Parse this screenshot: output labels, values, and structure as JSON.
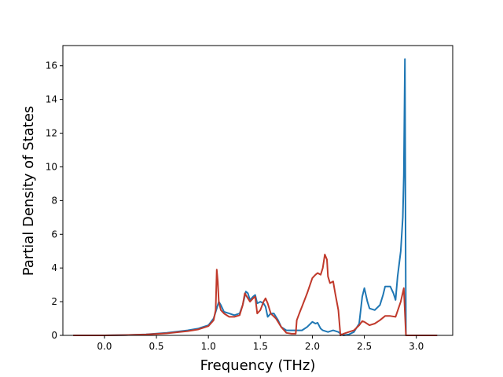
{
  "chart_data": {
    "type": "line",
    "title": "",
    "xlabel": "Frequency (THz)",
    "ylabel": "Partial Density of States",
    "xlim": [
      -0.4,
      3.35
    ],
    "ylim": [
      0,
      17.2
    ],
    "xticks": [
      "0.0",
      "0.5",
      "1.0",
      "1.5",
      "2.0",
      "2.5",
      "3.0"
    ],
    "xtick_values": [
      0.0,
      0.5,
      1.0,
      1.5,
      2.0,
      2.5,
      3.0
    ],
    "yticks": [
      "0",
      "2",
      "4",
      "6",
      "8",
      "10",
      "12",
      "14",
      "16"
    ],
    "ytick_values": [
      0,
      2,
      4,
      6,
      8,
      10,
      12,
      14,
      16
    ],
    "grid": false,
    "legend": "none",
    "series": [
      {
        "color": "#1f77b4",
        "x": [
          -0.3,
          0.0,
          0.2,
          0.4,
          0.6,
          0.8,
          0.9,
          1.0,
          1.05,
          1.08,
          1.1,
          1.12,
          1.15,
          1.2,
          1.25,
          1.3,
          1.33,
          1.36,
          1.38,
          1.4,
          1.43,
          1.45,
          1.47,
          1.5,
          1.53,
          1.55,
          1.57,
          1.6,
          1.63,
          1.67,
          1.7,
          1.75,
          1.8,
          1.85,
          1.9,
          1.95,
          2.0,
          2.03,
          2.05,
          2.08,
          2.1,
          2.15,
          2.2,
          2.25,
          2.28,
          2.3,
          2.35,
          2.4,
          2.45,
          2.48,
          2.5,
          2.53,
          2.55,
          2.6,
          2.65,
          2.68,
          2.7,
          2.75,
          2.78,
          2.8,
          2.82,
          2.85,
          2.87,
          2.88,
          2.89,
          2.9,
          2.91,
          2.95,
          3.0,
          3.2
        ],
        "y": [
          0.0,
          0.0,
          0.02,
          0.06,
          0.15,
          0.3,
          0.4,
          0.6,
          1.0,
          1.6,
          2.0,
          1.8,
          1.4,
          1.3,
          1.2,
          1.3,
          1.8,
          2.6,
          2.5,
          2.1,
          2.3,
          2.4,
          1.9,
          2.0,
          1.9,
          1.7,
          1.1,
          1.3,
          1.3,
          0.9,
          0.5,
          0.3,
          0.3,
          0.3,
          0.3,
          0.5,
          0.8,
          0.7,
          0.75,
          0.4,
          0.3,
          0.2,
          0.3,
          0.2,
          0.05,
          0.0,
          0.05,
          0.2,
          0.7,
          2.3,
          2.8,
          2.0,
          1.6,
          1.5,
          1.8,
          2.4,
          2.9,
          2.9,
          2.5,
          2.1,
          3.5,
          5.0,
          7.0,
          9.5,
          16.4,
          0.0,
          0.0,
          0.0,
          0.0,
          0.0
        ]
      },
      {
        "color": "#c0392b",
        "x": [
          -0.3,
          0.0,
          0.2,
          0.4,
          0.6,
          0.8,
          0.9,
          1.0,
          1.05,
          1.07,
          1.08,
          1.09,
          1.1,
          1.12,
          1.15,
          1.2,
          1.25,
          1.3,
          1.33,
          1.35,
          1.37,
          1.4,
          1.43,
          1.45,
          1.47,
          1.5,
          1.53,
          1.55,
          1.57,
          1.6,
          1.65,
          1.7,
          1.75,
          1.8,
          1.84,
          1.85,
          1.88,
          1.9,
          1.95,
          2.0,
          2.03,
          2.05,
          2.08,
          2.1,
          2.12,
          2.14,
          2.15,
          2.17,
          2.2,
          2.22,
          2.25,
          2.27,
          2.3,
          2.35,
          2.4,
          2.45,
          2.48,
          2.5,
          2.55,
          2.6,
          2.65,
          2.7,
          2.75,
          2.8,
          2.85,
          2.88,
          2.9,
          2.91,
          2.95,
          3.0,
          3.2
        ],
        "y": [
          0.0,
          0.0,
          0.02,
          0.05,
          0.12,
          0.25,
          0.35,
          0.55,
          0.9,
          1.5,
          3.9,
          3.2,
          2.0,
          1.5,
          1.3,
          1.1,
          1.1,
          1.2,
          1.8,
          2.5,
          2.3,
          2.0,
          2.2,
          2.3,
          1.3,
          1.5,
          2.0,
          2.2,
          1.9,
          1.3,
          1.0,
          0.5,
          0.15,
          0.1,
          0.1,
          0.9,
          1.4,
          1.7,
          2.5,
          3.4,
          3.6,
          3.7,
          3.6,
          4.0,
          4.8,
          4.5,
          3.5,
          3.1,
          3.2,
          2.5,
          1.5,
          0.0,
          0.1,
          0.2,
          0.3,
          0.6,
          0.85,
          0.8,
          0.6,
          0.7,
          0.9,
          1.15,
          1.15,
          1.1,
          2.0,
          2.8,
          0.0,
          0.0,
          0.0,
          0.0,
          0.0
        ]
      }
    ]
  }
}
